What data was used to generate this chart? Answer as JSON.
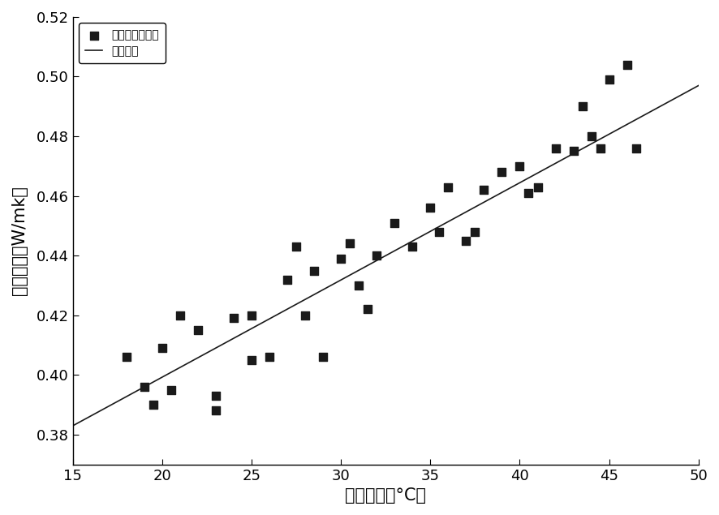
{
  "scatter_x": [
    18,
    19,
    19.5,
    20,
    20.5,
    21,
    22,
    23,
    23,
    24,
    25,
    25,
    26,
    27,
    27.5,
    28,
    28.5,
    29,
    30,
    30.5,
    31,
    31.5,
    32,
    33,
    34,
    35,
    35.5,
    36,
    37,
    37.5,
    38,
    39,
    40,
    40.5,
    41,
    42,
    43,
    43.5,
    44,
    44.5,
    45,
    46,
    46.5
  ],
  "scatter_y": [
    0.406,
    0.396,
    0.39,
    0.409,
    0.395,
    0.42,
    0.415,
    0.388,
    0.393,
    0.419,
    0.42,
    0.405,
    0.406,
    0.432,
    0.443,
    0.42,
    0.435,
    0.406,
    0.439,
    0.444,
    0.43,
    0.422,
    0.44,
    0.451,
    0.443,
    0.456,
    0.448,
    0.463,
    0.445,
    0.448,
    0.462,
    0.468,
    0.47,
    0.461,
    0.463,
    0.476,
    0.475,
    0.49,
    0.48,
    0.476,
    0.499,
    0.504,
    0.476
  ],
  "fit_x": [
    15,
    50
  ],
  "fit_y": [
    0.383,
    0.497
  ],
  "xlabel": "冷端温度（°C）",
  "ylabel": "导热系数（W/mk）",
  "xlim": [
    15,
    50
  ],
  "ylim": [
    0.37,
    0.52
  ],
  "xticks": [
    15,
    20,
    25,
    30,
    35,
    40,
    45,
    50
  ],
  "yticks": [
    0.38,
    0.4,
    0.42,
    0.44,
    0.46,
    0.48,
    0.5,
    0.52
  ],
  "legend_scatter": "样品的导热系数",
  "legend_fit": "线性拟合",
  "scatter_color": "#1a1a1a",
  "fit_color": "#1a1a1a",
  "background_color": "#ffffff",
  "marker_size": 7,
  "legend_fontsize": 13,
  "axis_label_fontsize": 15,
  "tick_fontsize": 13
}
